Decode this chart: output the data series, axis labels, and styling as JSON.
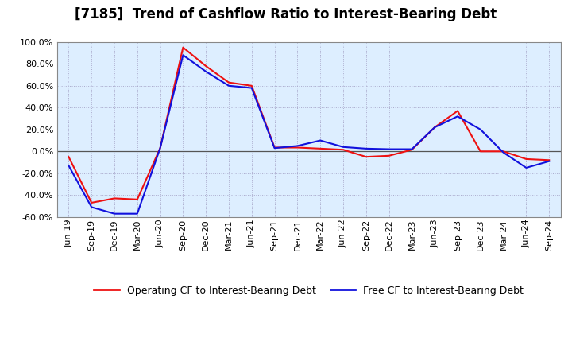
{
  "title": "[7185]  Trend of Cashflow Ratio to Interest-Bearing Debt",
  "x_labels": [
    "Jun-19",
    "Sep-19",
    "Dec-19",
    "Mar-20",
    "Jun-20",
    "Sep-20",
    "Dec-20",
    "Mar-21",
    "Jun-21",
    "Sep-21",
    "Dec-21",
    "Mar-22",
    "Jun-22",
    "Sep-22",
    "Dec-22",
    "Mar-23",
    "Jun-23",
    "Sep-23",
    "Dec-23",
    "Mar-24",
    "Jun-24",
    "Sep-24"
  ],
  "operating_cf": [
    -5.0,
    -47.0,
    -43.0,
    -44.0,
    3.0,
    95.0,
    78.0,
    63.0,
    60.0,
    3.5,
    3.5,
    2.5,
    1.5,
    -5.0,
    -4.0,
    1.5,
    22.0,
    37.0,
    0.0,
    0.0,
    -7.0,
    -8.0
  ],
  "free_cf": [
    -13.0,
    -51.0,
    -57.0,
    -57.0,
    3.0,
    88.0,
    73.0,
    60.0,
    58.0,
    3.0,
    5.0,
    10.0,
    4.0,
    2.5,
    2.0,
    2.0,
    22.0,
    32.0,
    20.0,
    -1.0,
    -15.0,
    -9.0
  ],
  "ylim": [
    -60.0,
    100.0
  ],
  "yticks": [
    -60.0,
    -40.0,
    -20.0,
    0.0,
    20.0,
    40.0,
    60.0,
    80.0,
    100.0
  ],
  "operating_color": "#EE1111",
  "free_color": "#1111DD",
  "background_color": "#FFFFFF",
  "plot_bg_color": "#DDEEFF",
  "grid_color": "#AAAACC",
  "legend_operating": "Operating CF to Interest-Bearing Debt",
  "legend_free": "Free CF to Interest-Bearing Debt",
  "title_fontsize": 12,
  "axis_fontsize": 8,
  "legend_fontsize": 9
}
